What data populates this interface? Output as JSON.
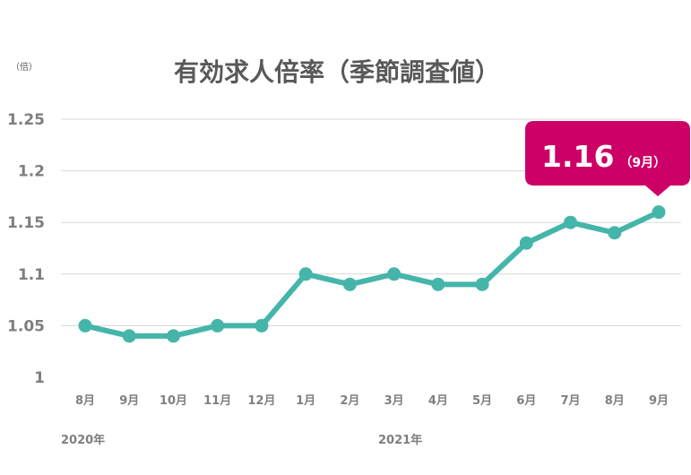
{
  "chart_data": {
    "type": "line",
    "title": "有効求人倍率（季節調査値）",
    "unit_label": "（倍）",
    "categories": [
      "8月",
      "9月",
      "10月",
      "11月",
      "12月",
      "1月",
      "2月",
      "3月",
      "4月",
      "5月",
      "6月",
      "7月",
      "8月",
      "9月"
    ],
    "values": [
      1.05,
      1.04,
      1.04,
      1.05,
      1.05,
      1.1,
      1.09,
      1.1,
      1.09,
      1.09,
      1.13,
      1.15,
      1.14,
      1.16
    ],
    "yticks": [
      "1",
      "1.05",
      "1.1",
      "1.15",
      "1.2",
      "1.25"
    ],
    "ylim": [
      1,
      1.25
    ],
    "year_labels": [
      "2020年",
      "2021年"
    ],
    "grid": true,
    "callout": {
      "value": "1.16",
      "month": "（9月）"
    },
    "colors": {
      "line": "#45b5aa",
      "callout": "#cc0066",
      "grid": "#d9d9d9",
      "text": "#7f7f7f"
    }
  }
}
